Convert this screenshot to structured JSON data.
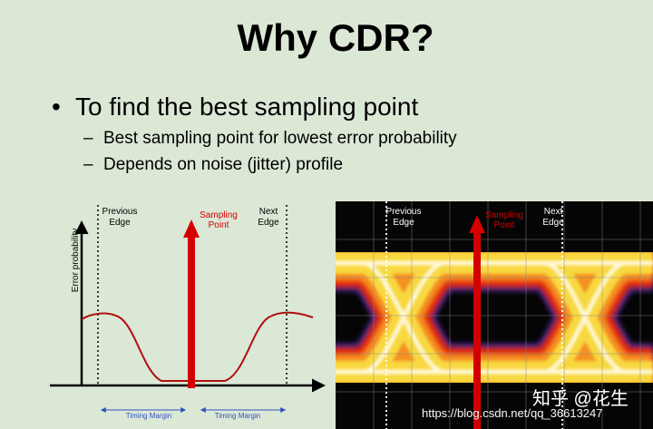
{
  "slide": {
    "title": "Why CDR?",
    "bullet": "To find the best sampling point",
    "sub_bullets": [
      "Best sampling point for lowest error probability",
      "Depends on noise (jitter) profile"
    ],
    "left_diagram": {
      "previous_edge": [
        "Previous",
        "Edge"
      ],
      "sampling_point": [
        "Sampling",
        "Point"
      ],
      "next_edge": [
        "Next",
        "Edge"
      ],
      "y_axis_label": "Error probability",
      "timing_margins": [
        "Timing Margin",
        "Timing Margin"
      ]
    },
    "eye_diagram": {
      "previous_edge": [
        "Previous",
        "Edge"
      ],
      "sampling_point": [
        "Sampling",
        "Point"
      ],
      "next_edge": [
        "Next",
        "Edge"
      ]
    },
    "watermark": {
      "site": "知乎 @花生",
      "url": "https://blog.csdn.net/qq_36613247"
    }
  }
}
